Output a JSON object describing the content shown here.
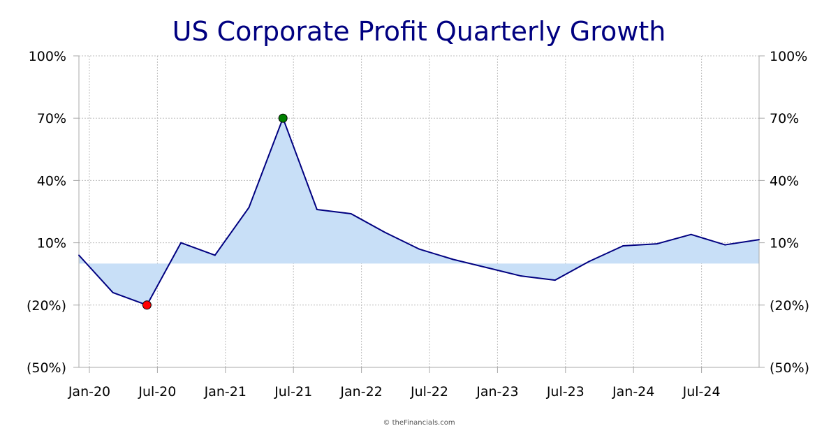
{
  "chart_data": {
    "type": "area",
    "title": "US Corporate Profit Quarterly Growth",
    "xlabel": "",
    "ylabel": "",
    "x": [
      "Jan-20",
      "Apr-20",
      "Jul-20",
      "Oct-20",
      "Jan-21",
      "Apr-21",
      "Jul-21",
      "Oct-21",
      "Jan-22",
      "Apr-22",
      "Jul-22",
      "Oct-22",
      "Jan-23",
      "Apr-23",
      "Jul-23",
      "Oct-23",
      "Jan-24",
      "Apr-24",
      "Jul-24",
      "Oct-24",
      "Jan-25"
    ],
    "values": [
      4,
      -14,
      -20,
      10,
      4,
      27,
      70,
      26,
      24,
      15,
      7,
      2,
      -2,
      -6,
      -8,
      1,
      8.5,
      9.5,
      14,
      9,
      11.5
    ],
    "x_tick_labels": [
      "Jan-20",
      "Jul-20",
      "Jan-21",
      "Jul-21",
      "Jan-22",
      "Jul-22",
      "Jan-23",
      "Jul-23",
      "Jan-24",
      "Jul-24"
    ],
    "y_tick_labels": [
      "(50%)",
      "(20%)",
      "10%",
      "40%",
      "70%",
      "100%"
    ],
    "y_ticks": [
      -50,
      -20,
      10,
      40,
      70,
      100
    ],
    "ylim": [
      -50,
      100
    ],
    "baseline": 0,
    "grid": true,
    "legend": "none",
    "max_marker": {
      "x": "Jul-21",
      "value": 70
    },
    "min_marker": {
      "x": "Jul-20",
      "value": -20
    },
    "colors": {
      "line": "#000080",
      "fill": "#c8dff7",
      "max_marker": "#008000",
      "min_marker": "#ff0000",
      "title": "#000080"
    }
  },
  "credit": "© theFinancials.com"
}
